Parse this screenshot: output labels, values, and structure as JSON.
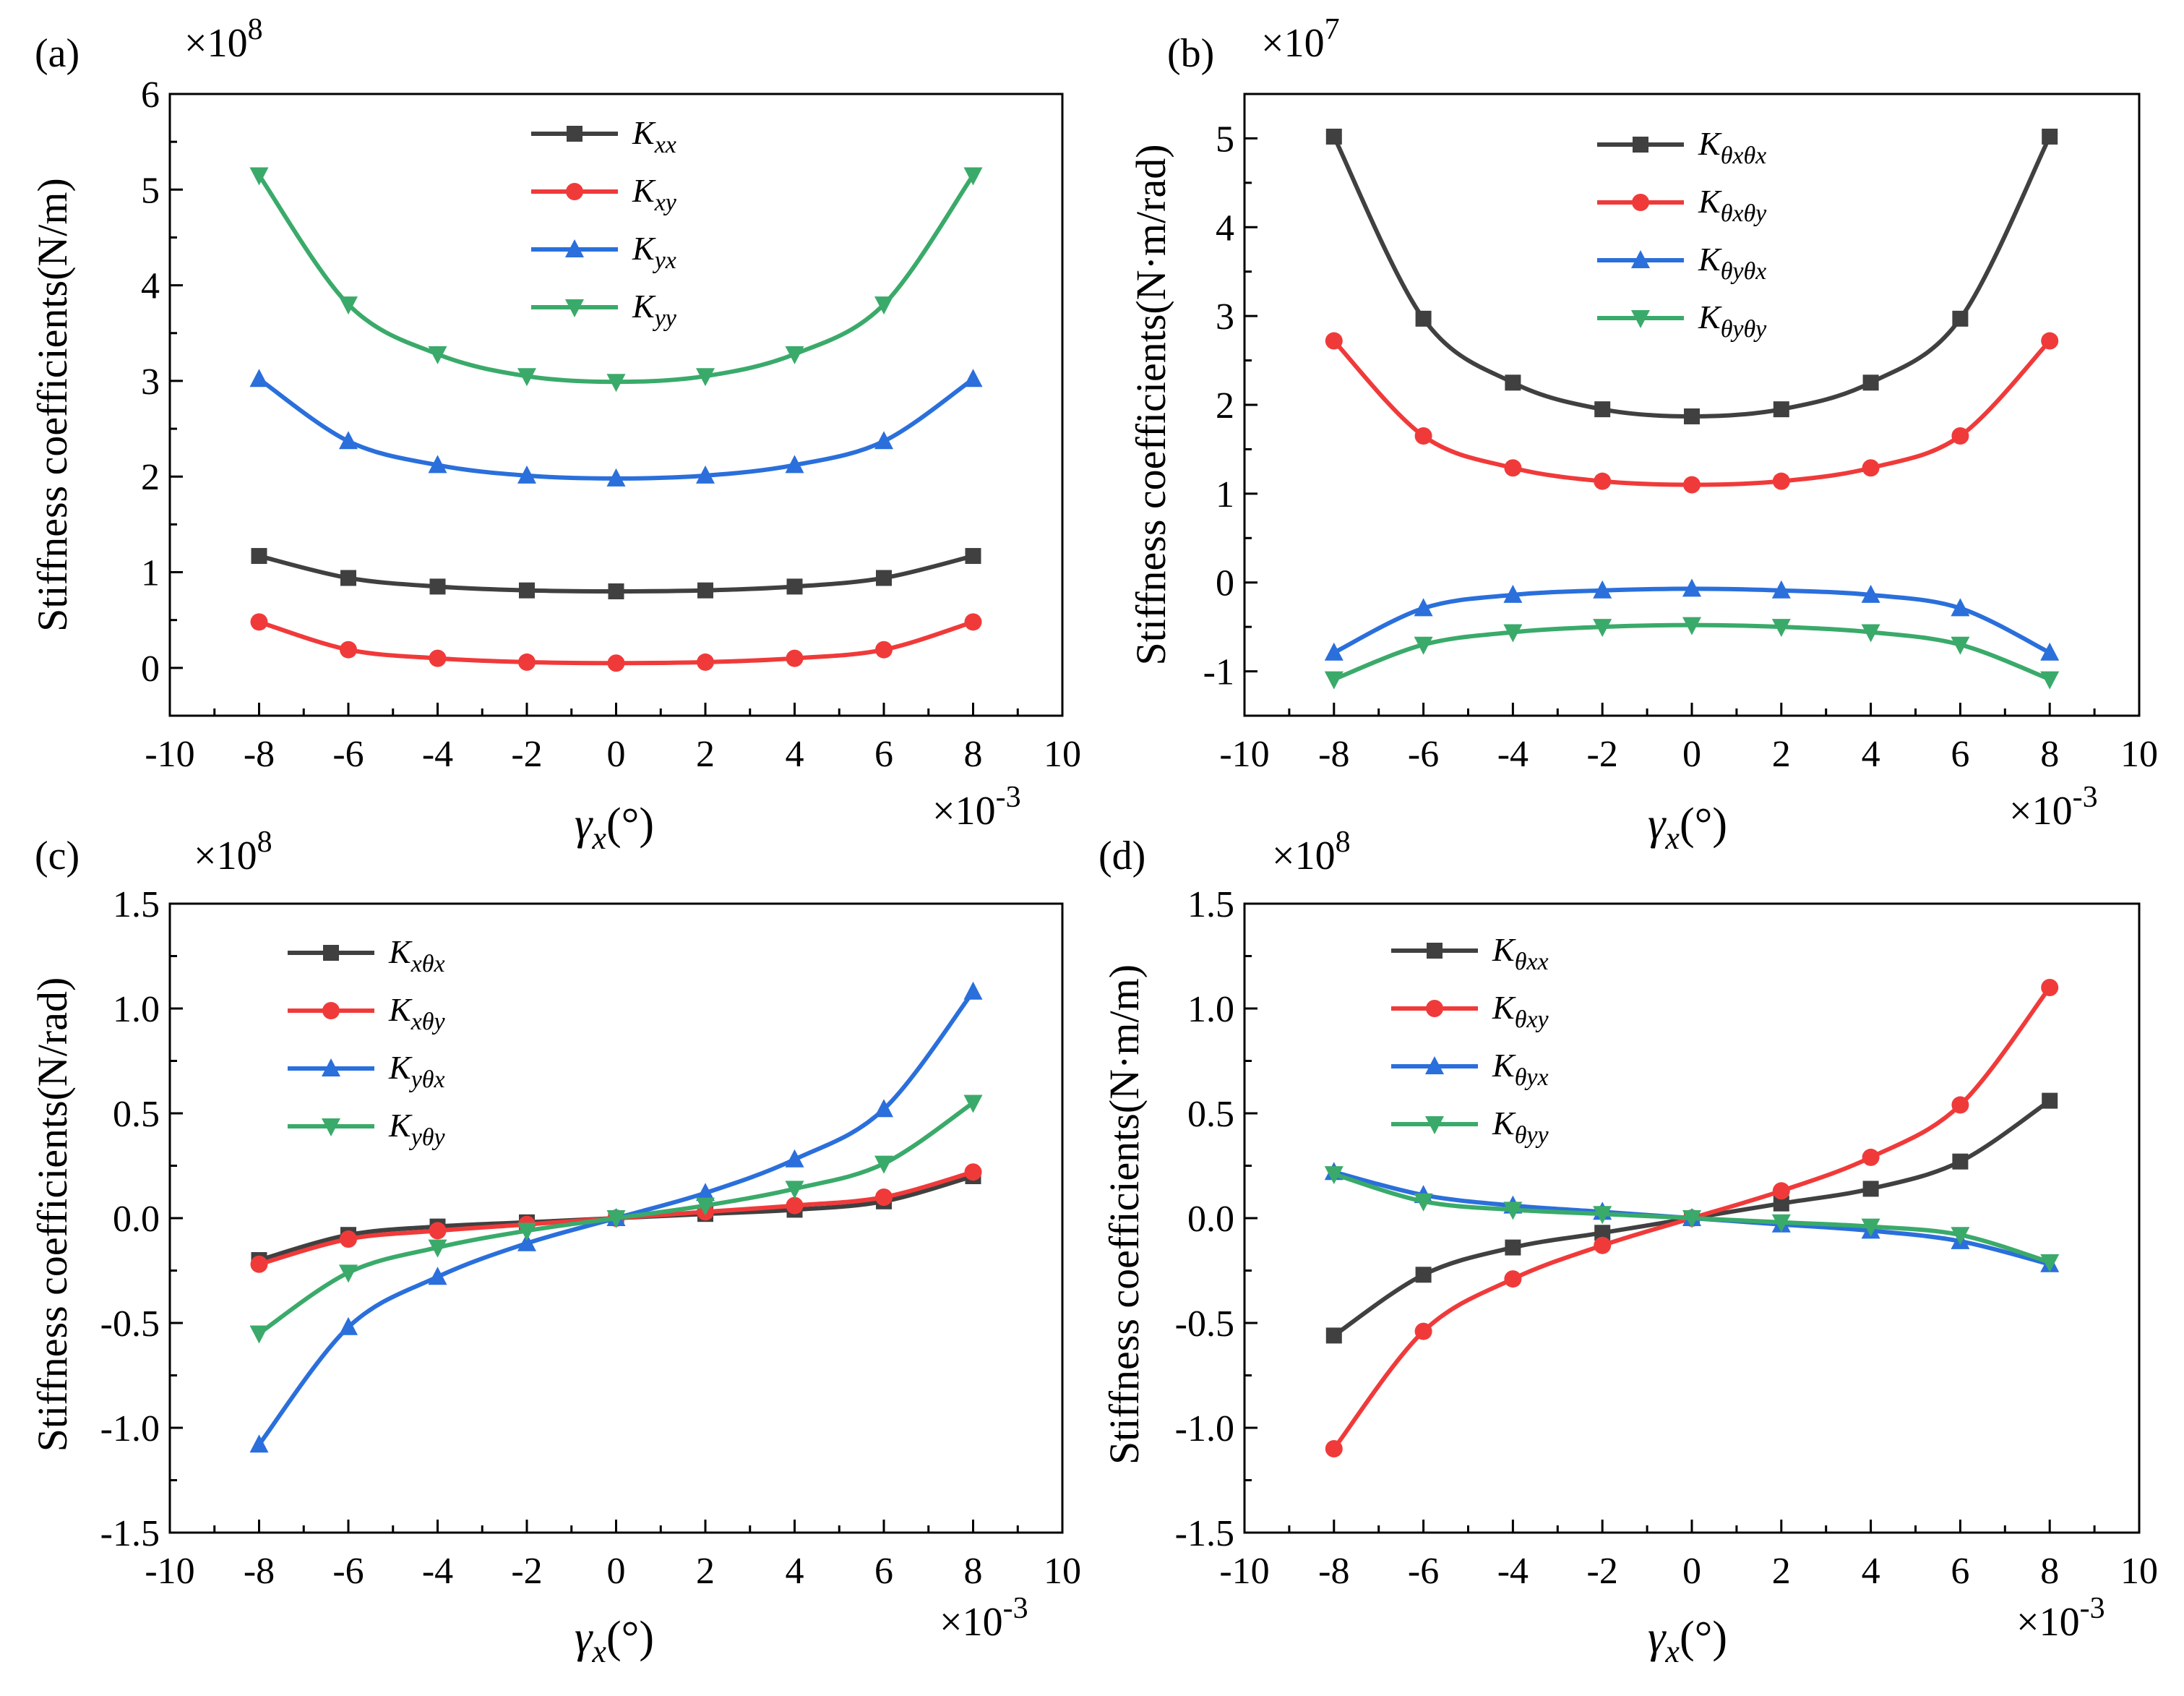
{
  "chart_data": [
    {
      "type": "line",
      "panel_label": "(a)",
      "ylabel": "Stiffness coefficients(N/m)",
      "xlabel_symbol": "γ",
      "xlabel_sub": "x",
      "xlabel_unit": "(°)",
      "y_multiplier_base": "×10",
      "y_multiplier_exp": "8",
      "x_multiplier_base": "×10",
      "x_multiplier_exp": "-3",
      "xlim": [
        -10,
        10
      ],
      "ylim": [
        -0.5,
        6
      ],
      "xticks": [
        -10,
        -8,
        -6,
        -4,
        -2,
        0,
        2,
        4,
        6,
        8,
        10
      ],
      "xtick_labels": [
        "-10",
        "-8",
        "-6",
        "-4",
        "-2",
        "0",
        "2",
        "4",
        "6",
        "8",
        "10"
      ],
      "yticks": [
        0,
        1,
        2,
        3,
        4,
        5,
        6
      ],
      "ytick_labels": [
        "0",
        "1",
        "2",
        "3",
        "4",
        "5",
        "6"
      ],
      "legend_position": "top-center",
      "x": [
        -8,
        -6,
        -4,
        -2,
        0,
        2,
        4,
        6,
        8
      ],
      "series": [
        {
          "name": "K",
          "sub": "xx",
          "color": "#404040",
          "marker": "square",
          "values": [
            1.17,
            0.94,
            0.85,
            0.81,
            0.8,
            0.81,
            0.85,
            0.94,
            1.17
          ]
        },
        {
          "name": "K",
          "sub": "xy",
          "color": "#f03a3a",
          "marker": "circle",
          "values": [
            0.48,
            0.19,
            0.1,
            0.06,
            0.05,
            0.06,
            0.1,
            0.19,
            0.48
          ]
        },
        {
          "name": "K",
          "sub": "yx",
          "color": "#2a6fdb",
          "marker": "triangle-up",
          "values": [
            3.02,
            2.37,
            2.12,
            2.01,
            1.98,
            2.01,
            2.12,
            2.37,
            3.02
          ]
        },
        {
          "name": "K",
          "sub": "yy",
          "color": "#3aaa6a",
          "marker": "triangle-down",
          "values": [
            5.15,
            3.8,
            3.28,
            3.05,
            2.99,
            3.05,
            3.28,
            3.8,
            5.15
          ]
        }
      ]
    },
    {
      "type": "line",
      "panel_label": "(b)",
      "ylabel": "Stiffness coefficients(N·m/rad)",
      "xlabel_symbol": "γ",
      "xlabel_sub": "x",
      "xlabel_unit": "(°)",
      "y_multiplier_base": "×10",
      "y_multiplier_exp": "7",
      "x_multiplier_base": "×10",
      "x_multiplier_exp": "-3",
      "xlim": [
        -10,
        10
      ],
      "ylim": [
        -1.5,
        5.5
      ],
      "xticks": [
        -10,
        -8,
        -6,
        -4,
        -2,
        0,
        2,
        4,
        6,
        8,
        10
      ],
      "xtick_labels": [
        "-10",
        "-8",
        "-6",
        "-4",
        "-2",
        "0",
        "2",
        "4",
        "6",
        "8",
        "10"
      ],
      "yticks": [
        -1,
        0,
        1,
        2,
        3,
        4,
        5
      ],
      "ytick_labels": [
        "-1",
        "0",
        "1",
        "2",
        "3",
        "4",
        "5"
      ],
      "legend_position": "top-center",
      "x": [
        -8,
        -6,
        -4,
        -2,
        0,
        2,
        4,
        6,
        8
      ],
      "series": [
        {
          "name": "K",
          "sub": "θxθx",
          "color": "#404040",
          "marker": "square",
          "values": [
            5.02,
            2.97,
            2.25,
            1.95,
            1.87,
            1.95,
            2.25,
            2.97,
            5.02
          ]
        },
        {
          "name": "K",
          "sub": "θxθy",
          "color": "#f03a3a",
          "marker": "circle",
          "values": [
            2.72,
            1.65,
            1.29,
            1.14,
            1.1,
            1.14,
            1.29,
            1.65,
            2.72
          ]
        },
        {
          "name": "K",
          "sub": "θyθx",
          "color": "#2a6fdb",
          "marker": "triangle-up",
          "values": [
            -0.79,
            -0.29,
            -0.14,
            -0.09,
            -0.07,
            -0.09,
            -0.14,
            -0.29,
            -0.79
          ]
        },
        {
          "name": "K",
          "sub": "θyθy",
          "color": "#3aaa6a",
          "marker": "triangle-down",
          "values": [
            -1.09,
            -0.7,
            -0.56,
            -0.5,
            -0.48,
            -0.5,
            -0.56,
            -0.7,
            -1.09
          ]
        }
      ]
    },
    {
      "type": "line",
      "panel_label": "(c)",
      "ylabel": "Stiffness coefficients(N/rad)",
      "xlabel_symbol": "γ",
      "xlabel_sub": "x",
      "xlabel_unit": "(°)",
      "y_multiplier_base": "×10",
      "y_multiplier_exp": "8",
      "x_multiplier_base": "×10",
      "x_multiplier_exp": "-3",
      "xlim": [
        -10,
        10
      ],
      "ylim": [
        -1.5,
        1.5
      ],
      "xticks": [
        -10,
        -8,
        -6,
        -4,
        -2,
        0,
        2,
        4,
        6,
        8,
        10
      ],
      "xtick_labels": [
        "-10",
        "-8",
        "-6",
        "-4",
        "-2",
        "0",
        "2",
        "4",
        "6",
        "8",
        "10"
      ],
      "yticks": [
        -1.5,
        -1.0,
        -0.5,
        0.0,
        0.5,
        1.0,
        1.5
      ],
      "ytick_labels": [
        "-1.5",
        "-1.0",
        "-0.5",
        "0.0",
        "0.5",
        "1.0",
        "1.5"
      ],
      "legend_position": "top-left",
      "x": [
        -8,
        -6,
        -4,
        -2,
        0,
        2,
        4,
        6,
        8
      ],
      "series": [
        {
          "name": "K",
          "sub": "xθx",
          "color": "#404040",
          "marker": "square",
          "values": [
            -0.2,
            -0.08,
            -0.04,
            -0.02,
            0.0,
            0.02,
            0.04,
            0.08,
            0.2
          ]
        },
        {
          "name": "K",
          "sub": "xθy",
          "color": "#f03a3a",
          "marker": "circle",
          "values": [
            -0.22,
            -0.1,
            -0.06,
            -0.03,
            0.0,
            0.03,
            0.06,
            0.1,
            0.22
          ]
        },
        {
          "name": "K",
          "sub": "yθx",
          "color": "#2a6fdb",
          "marker": "triangle-up",
          "values": [
            -1.08,
            -0.52,
            -0.28,
            -0.12,
            0.0,
            0.12,
            0.28,
            0.52,
            1.08
          ]
        },
        {
          "name": "K",
          "sub": "yθy",
          "color": "#3aaa6a",
          "marker": "triangle-down",
          "values": [
            -0.55,
            -0.26,
            -0.14,
            -0.06,
            0.0,
            0.06,
            0.14,
            0.26,
            0.55
          ]
        }
      ]
    },
    {
      "type": "line",
      "panel_label": "(d)",
      "ylabel": "Stiffness coefficients(N·m/m)",
      "xlabel_symbol": "γ",
      "xlabel_sub": "x",
      "xlabel_unit": "(°)",
      "y_multiplier_base": "×10",
      "y_multiplier_exp": "8",
      "x_multiplier_base": "×10",
      "x_multiplier_exp": "-3",
      "xlim": [
        -10,
        10
      ],
      "ylim": [
        -1.5,
        1.5
      ],
      "xticks": [
        -10,
        -8,
        -6,
        -4,
        -2,
        0,
        2,
        4,
        6,
        8,
        10
      ],
      "xtick_labels": [
        "-10",
        "-8",
        "-6",
        "-4",
        "-2",
        "0",
        "2",
        "4",
        "6",
        "8",
        "10"
      ],
      "yticks": [
        -1.5,
        -1.0,
        -0.5,
        0.0,
        0.5,
        1.0,
        1.5
      ],
      "ytick_labels": [
        "-1.5",
        "-1.0",
        "-0.5",
        "0.0",
        "0.5",
        "1.0",
        "1.5"
      ],
      "legend_position": "top-left",
      "x": [
        -8,
        -6,
        -4,
        -2,
        0,
        2,
        4,
        6,
        8
      ],
      "series": [
        {
          "name": "K",
          "sub": "θxx",
          "color": "#404040",
          "marker": "square",
          "values": [
            -0.56,
            -0.27,
            -0.14,
            -0.07,
            0.0,
            0.07,
            0.14,
            0.27,
            0.56
          ]
        },
        {
          "name": "K",
          "sub": "θxy",
          "color": "#f03a3a",
          "marker": "circle",
          "values": [
            -1.1,
            -0.54,
            -0.29,
            -0.13,
            0.0,
            0.13,
            0.29,
            0.54,
            1.1
          ]
        },
        {
          "name": "K",
          "sub": "θyx",
          "color": "#2a6fdb",
          "marker": "triangle-up",
          "values": [
            0.22,
            0.11,
            0.06,
            0.03,
            0.0,
            -0.03,
            -0.06,
            -0.11,
            -0.22
          ]
        },
        {
          "name": "K",
          "sub": "θyy",
          "color": "#3aaa6a",
          "marker": "triangle-down",
          "values": [
            0.21,
            0.08,
            0.04,
            0.02,
            0.0,
            -0.02,
            -0.04,
            -0.08,
            -0.21
          ]
        }
      ]
    }
  ]
}
